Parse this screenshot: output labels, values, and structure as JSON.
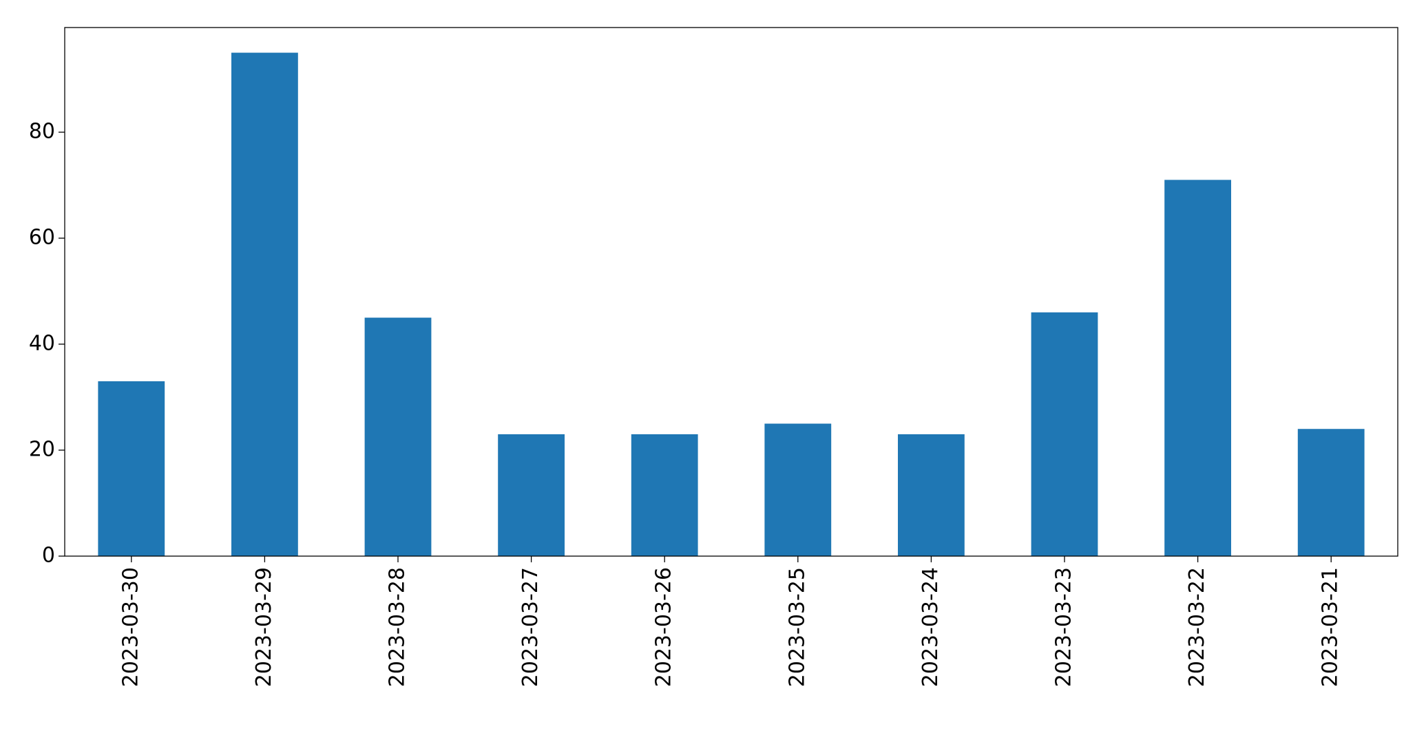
{
  "chart_data": {
    "type": "bar",
    "categories": [
      "2023-03-30",
      "2023-03-29",
      "2023-03-28",
      "2023-03-27",
      "2023-03-26",
      "2023-03-25",
      "2023-03-24",
      "2023-03-23",
      "2023-03-22",
      "2023-03-21"
    ],
    "values": [
      33,
      95,
      45,
      23,
      23,
      25,
      23,
      46,
      71,
      24
    ],
    "color": "#1f77b4",
    "ylim": [
      0,
      99.75
    ],
    "yticks": [
      0,
      20,
      40,
      60,
      80
    ],
    "grid": false
  }
}
